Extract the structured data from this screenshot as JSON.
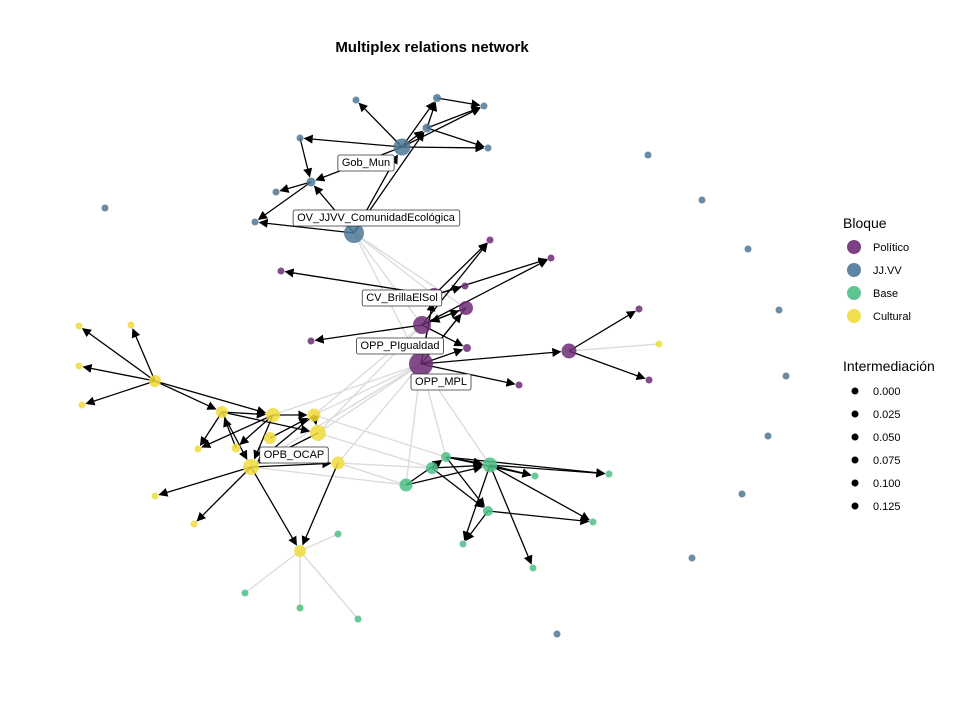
{
  "title": "Multiplex relations network",
  "legend": {
    "bloque_title": "Bloque",
    "bloque_items": [
      {
        "label": "Político",
        "color": "#6d2c75"
      },
      {
        "label": "JJ.VV",
        "color": "#4f7898"
      },
      {
        "label": "Base",
        "color": "#4cbf86"
      },
      {
        "label": "Cultural",
        "color": "#f0dc3a"
      }
    ],
    "inter_title": "Intermediación",
    "inter_items": [
      "0.000",
      "0.025",
      "0.050",
      "0.075",
      "0.100",
      "0.125"
    ]
  },
  "colors": {
    "politico": "#6d2c75",
    "jjvv": "#4f7898",
    "base": "#4cbf86",
    "cultural": "#f0dc3a",
    "edge_directed": "#000000",
    "edge_faint": "#dcdcdc"
  },
  "node_labels": [
    {
      "id": "gob",
      "text": "Gob_Mun"
    },
    {
      "id": "ovjjvv",
      "text": "OV_JJVV_ComunidadEcológica"
    },
    {
      "id": "cvbrilla",
      "text": "CV_BrillaElSol"
    },
    {
      "id": "oppigual",
      "text": "OPP_PIgualdad"
    },
    {
      "id": "oppmpl",
      "text": "OPP_MPL"
    },
    {
      "id": "opbocap",
      "text": "OPB_OCAP"
    }
  ]
}
